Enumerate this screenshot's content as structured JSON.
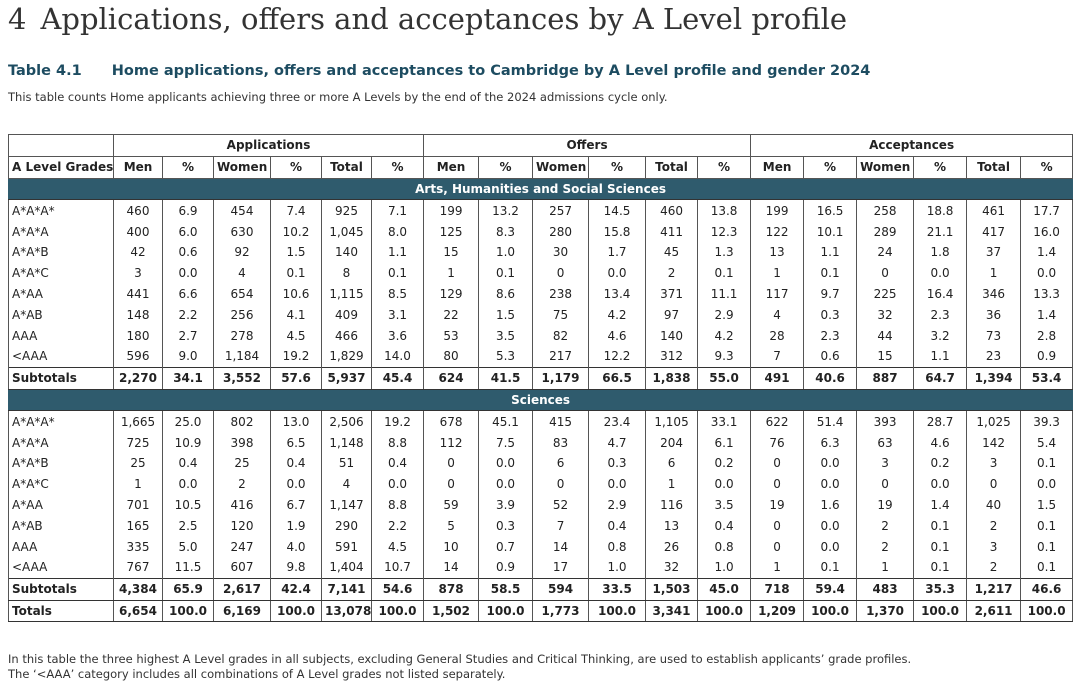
{
  "heading": {
    "number": "4",
    "title": "Applications, offers and acceptances by A Level profile"
  },
  "caption": {
    "label": "Table 4.1",
    "title": "Home applications, offers and acceptances to Cambridge by A Level profile and gender 2024"
  },
  "description": "This table counts Home applicants achieving three or more A Levels by the end of the 2024 admissions cycle only.",
  "table": {
    "row_header": "A Level Grades",
    "groups": [
      {
        "name": "Applications",
        "columns": [
          "Men",
          "%",
          "Women",
          "%",
          "Total",
          "%"
        ]
      },
      {
        "name": "Offers",
        "columns": [
          "Men",
          "%",
          "Women",
          "%",
          "Total",
          "%"
        ]
      },
      {
        "name": "Acceptances",
        "columns": [
          "Men",
          "%",
          "Women",
          "%",
          "Total",
          "%"
        ]
      }
    ],
    "sections": [
      {
        "title": "Arts, Humanities and Social Sciences",
        "rows": [
          [
            "A*A*A*",
            "460",
            "6.9",
            "454",
            "7.4",
            "925",
            "7.1",
            "199",
            "13.2",
            "257",
            "14.5",
            "460",
            "13.8",
            "199",
            "16.5",
            "258",
            "18.8",
            "461",
            "17.7"
          ],
          [
            "A*A*A",
            "400",
            "6.0",
            "630",
            "10.2",
            "1,045",
            "8.0",
            "125",
            "8.3",
            "280",
            "15.8",
            "411",
            "12.3",
            "122",
            "10.1",
            "289",
            "21.1",
            "417",
            "16.0"
          ],
          [
            "A*A*B",
            "42",
            "0.6",
            "92",
            "1.5",
            "140",
            "1.1",
            "15",
            "1.0",
            "30",
            "1.7",
            "45",
            "1.3",
            "13",
            "1.1",
            "24",
            "1.8",
            "37",
            "1.4"
          ],
          [
            "A*A*C",
            "3",
            "0.0",
            "4",
            "0.1",
            "8",
            "0.1",
            "1",
            "0.1",
            "0",
            "0.0",
            "2",
            "0.1",
            "1",
            "0.1",
            "0",
            "0.0",
            "1",
            "0.0"
          ],
          [
            "A*AA",
            "441",
            "6.6",
            "654",
            "10.6",
            "1,115",
            "8.5",
            "129",
            "8.6",
            "238",
            "13.4",
            "371",
            "11.1",
            "117",
            "9.7",
            "225",
            "16.4",
            "346",
            "13.3"
          ],
          [
            "A*AB",
            "148",
            "2.2",
            "256",
            "4.1",
            "409",
            "3.1",
            "22",
            "1.5",
            "75",
            "4.2",
            "97",
            "2.9",
            "4",
            "0.3",
            "32",
            "2.3",
            "36",
            "1.4"
          ],
          [
            "AAA",
            "180",
            "2.7",
            "278",
            "4.5",
            "466",
            "3.6",
            "53",
            "3.5",
            "82",
            "4.6",
            "140",
            "4.2",
            "28",
            "2.3",
            "44",
            "3.2",
            "73",
            "2.8"
          ],
          [
            "<AAA",
            "596",
            "9.0",
            "1,184",
            "19.2",
            "1,829",
            "14.0",
            "80",
            "5.3",
            "217",
            "12.2",
            "312",
            "9.3",
            "7",
            "0.6",
            "15",
            "1.1",
            "23",
            "0.9"
          ]
        ],
        "subtotal": [
          "Subtotals",
          "2,270",
          "34.1",
          "3,552",
          "57.6",
          "5,937",
          "45.4",
          "624",
          "41.5",
          "1,179",
          "66.5",
          "1,838",
          "55.0",
          "491",
          "40.6",
          "887",
          "64.7",
          "1,394",
          "53.4"
        ]
      },
      {
        "title": "Sciences",
        "rows": [
          [
            "A*A*A*",
            "1,665",
            "25.0",
            "802",
            "13.0",
            "2,506",
            "19.2",
            "678",
            "45.1",
            "415",
            "23.4",
            "1,105",
            "33.1",
            "622",
            "51.4",
            "393",
            "28.7",
            "1,025",
            "39.3"
          ],
          [
            "A*A*A",
            "725",
            "10.9",
            "398",
            "6.5",
            "1,148",
            "8.8",
            "112",
            "7.5",
            "83",
            "4.7",
            "204",
            "6.1",
            "76",
            "6.3",
            "63",
            "4.6",
            "142",
            "5.4"
          ],
          [
            "A*A*B",
            "25",
            "0.4",
            "25",
            "0.4",
            "51",
            "0.4",
            "0",
            "0.0",
            "6",
            "0.3",
            "6",
            "0.2",
            "0",
            "0.0",
            "3",
            "0.2",
            "3",
            "0.1"
          ],
          [
            "A*A*C",
            "1",
            "0.0",
            "2",
            "0.0",
            "4",
            "0.0",
            "0",
            "0.0",
            "0",
            "0.0",
            "1",
            "0.0",
            "0",
            "0.0",
            "0",
            "0.0",
            "0",
            "0.0"
          ],
          [
            "A*AA",
            "701",
            "10.5",
            "416",
            "6.7",
            "1,147",
            "8.8",
            "59",
            "3.9",
            "52",
            "2.9",
            "116",
            "3.5",
            "19",
            "1.6",
            "19",
            "1.4",
            "40",
            "1.5"
          ],
          [
            "A*AB",
            "165",
            "2.5",
            "120",
            "1.9",
            "290",
            "2.2",
            "5",
            "0.3",
            "7",
            "0.4",
            "13",
            "0.4",
            "0",
            "0.0",
            "2",
            "0.1",
            "2",
            "0.1"
          ],
          [
            "AAA",
            "335",
            "5.0",
            "247",
            "4.0",
            "591",
            "4.5",
            "10",
            "0.7",
            "14",
            "0.8",
            "26",
            "0.8",
            "0",
            "0.0",
            "2",
            "0.1",
            "3",
            "0.1"
          ],
          [
            "<AAA",
            "767",
            "11.5",
            "607",
            "9.8",
            "1,404",
            "10.7",
            "14",
            "0.9",
            "17",
            "1.0",
            "32",
            "1.0",
            "1",
            "0.1",
            "1",
            "0.1",
            "2",
            "0.1"
          ]
        ],
        "subtotal": [
          "Subtotals",
          "4,384",
          "65.9",
          "2,617",
          "42.4",
          "7,141",
          "54.6",
          "878",
          "58.5",
          "594",
          "33.5",
          "1,503",
          "45.0",
          "718",
          "59.4",
          "483",
          "35.3",
          "1,217",
          "46.6"
        ]
      }
    ],
    "totals": [
      "Totals",
      "6,654",
      "100.0",
      "6,169",
      "100.0",
      "13,078",
      "100.0",
      "1,502",
      "100.0",
      "1,773",
      "100.0",
      "3,341",
      "100.0",
      "1,209",
      "100.0",
      "1,370",
      "100.0",
      "2,611",
      "100.0"
    ]
  },
  "footnotes": [
    "In this table the three highest A Level grades in all subjects, excluding General Studies and Critical Thinking, are used to establish applicants’ grade profiles.",
    "The ‘<AAA’ category includes all combinations of A Level grades not listed separately."
  ]
}
